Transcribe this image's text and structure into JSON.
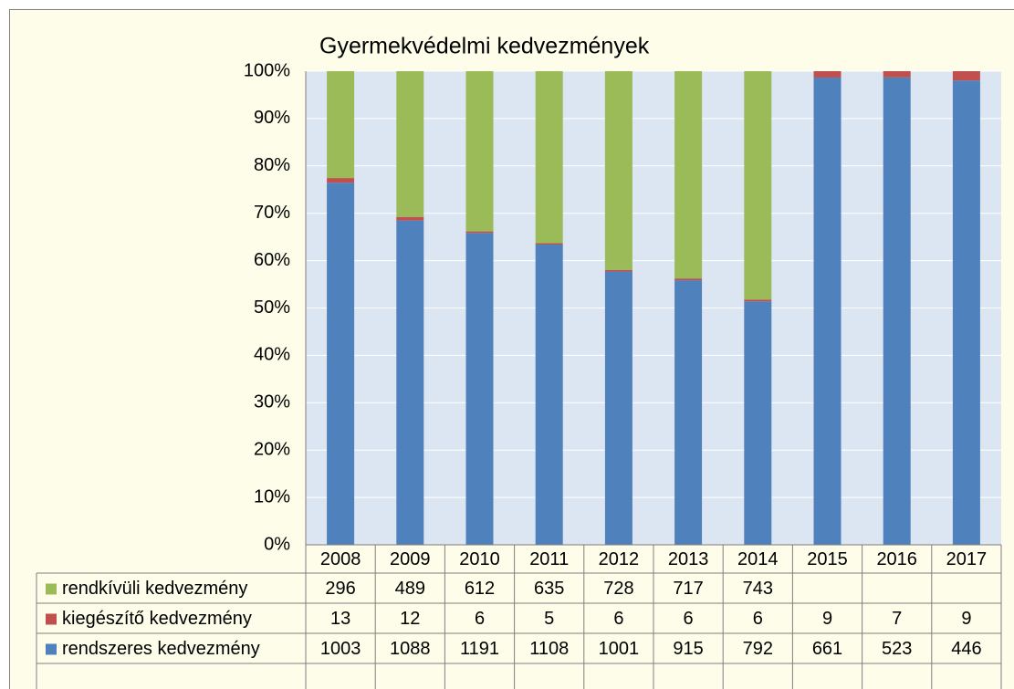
{
  "chart_data": {
    "type": "bar",
    "stacking": "percent",
    "title": "Gyermekvédelmi kedvezmények",
    "categories": [
      "2008",
      "2009",
      "2010",
      "2011",
      "2012",
      "2013",
      "2014",
      "2015",
      "2016",
      "2017"
    ],
    "series": [
      {
        "name": "rendkívüli kedvezmény",
        "color": "#9bbb59",
        "values": [
          296,
          489,
          612,
          635,
          728,
          717,
          743,
          null,
          null,
          null
        ]
      },
      {
        "name": "kiegészítő kedvezmény",
        "color": "#c0504d",
        "values": [
          13,
          12,
          6,
          5,
          6,
          6,
          6,
          9,
          7,
          9
        ]
      },
      {
        "name": "rendszeres kedvezmény",
        "color": "#4f81bd",
        "values": [
          1003,
          1088,
          1191,
          1108,
          1001,
          915,
          792,
          661,
          523,
          446
        ]
      }
    ],
    "ylim": [
      0,
      100
    ],
    "yticks": [
      {
        "value": 0,
        "label": "0%"
      },
      {
        "value": 10,
        "label": "10%"
      },
      {
        "value": 20,
        "label": "20%"
      },
      {
        "value": 30,
        "label": "30%"
      },
      {
        "value": 40,
        "label": "40%"
      },
      {
        "value": 50,
        "label": "50%"
      },
      {
        "value": 60,
        "label": "60%"
      },
      {
        "value": 70,
        "label": "70%"
      },
      {
        "value": 80,
        "label": "80%"
      },
      {
        "value": 90,
        "label": "90%"
      },
      {
        "value": 100,
        "label": "100%"
      }
    ],
    "grid": true,
    "data_table": true
  }
}
